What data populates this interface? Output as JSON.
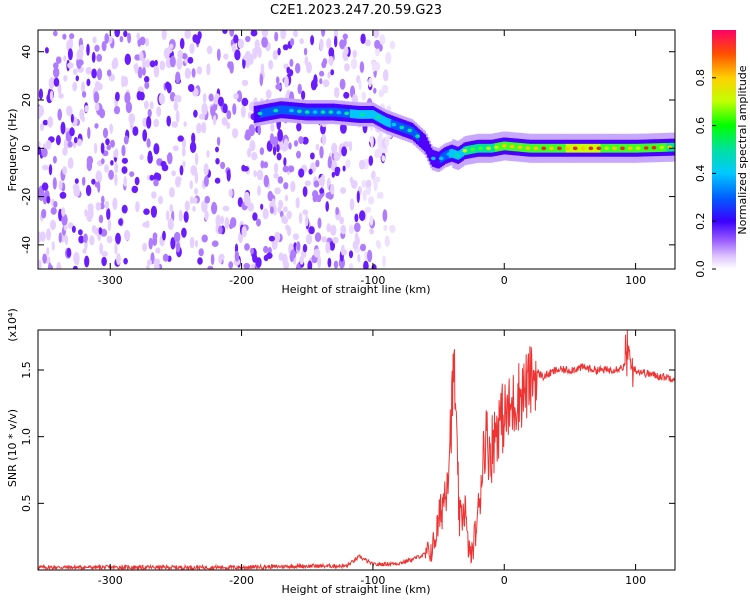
{
  "title": "C2E1.2023.247.20.59.G23",
  "colors": {
    "snr_line": "#ee3333",
    "spectrogram_low": "#7b2fff",
    "spectrogram_high": "#ee1166"
  },
  "chart_data": [
    {
      "type": "heatmap",
      "title": "",
      "xlabel": "Height of straight line (km)",
      "ylabel": "Frequency (Hz)",
      "xlim": [
        -355,
        130
      ],
      "ylim": [
        -50,
        49
      ],
      "x_ticks": [
        -300,
        -200,
        -100,
        0,
        100
      ],
      "x_tick_labels": [
        "-300",
        "-200",
        "-100",
        "0",
        "100"
      ],
      "y_ticks": [
        -40,
        -20,
        0,
        20,
        40
      ],
      "y_tick_labels": [
        "-40",
        "-20",
        "0",
        "20",
        "40"
      ],
      "colorbar": {
        "label": "Normalized spectral amplitude",
        "range": [
          0,
          1
        ],
        "ticks": [
          0.0,
          0.2,
          0.4,
          0.6,
          0.8
        ],
        "tick_labels": [
          "0.0",
          "0.2",
          "0.4",
          "0.6",
          "0.8"
        ],
        "colormap": "rainbow"
      },
      "noise_region": {
        "x_range": [
          -355,
          -85
        ],
        "y_range": [
          -50,
          49
        ],
        "amplitude": 0.15
      },
      "signal_track": {
        "x": [
          -190,
          -170,
          -150,
          -130,
          -110,
          -100,
          -90,
          -80,
          -70,
          -60,
          -55,
          -50,
          -45,
          -40,
          -35,
          -30,
          -20,
          -10,
          0,
          20,
          40,
          60,
          80,
          100,
          130
        ],
        "y": [
          14,
          16,
          15,
          15,
          14,
          14,
          11,
          9,
          7,
          2,
          -4,
          -5,
          -3,
          -2,
          -3,
          -1,
          0,
          0,
          1,
          0,
          0,
          0,
          0,
          0,
          0.5
        ],
        "amp": [
          0.35,
          0.45,
          0.4,
          0.45,
          0.5,
          0.5,
          0.5,
          0.45,
          0.4,
          0.35,
          0.35,
          0.35,
          0.45,
          0.5,
          0.55,
          0.6,
          0.65,
          0.7,
          0.8,
          0.85,
          0.85,
          0.9,
          0.85,
          0.85,
          0.7
        ]
      }
    },
    {
      "type": "line",
      "title": "",
      "xlabel": "Height of straight line (km)",
      "ylabel": "SNR (10 * v/v)",
      "y_scale_note": "(x10⁴)",
      "xlim": [
        -355,
        130
      ],
      "ylim": [
        0,
        1.8
      ],
      "grid": false,
      "x_ticks": [
        -300,
        -200,
        -100,
        0,
        100
      ],
      "x_tick_labels": [
        "-300",
        "-200",
        "-100",
        "0",
        "100"
      ],
      "y_ticks": [
        0.5,
        1.0,
        1.5
      ],
      "y_tick_labels": [
        "0.5",
        "1.0",
        "1.5"
      ],
      "series": [
        {
          "x": [
            -355,
            -300,
            -250,
            -200,
            -150,
            -120,
            -110,
            -100,
            -80,
            -70,
            -60,
            -55,
            -50,
            -45,
            -42,
            -40,
            -38,
            -36,
            -34,
            -30,
            -28,
            -25,
            -20,
            -15,
            -10,
            -5,
            0,
            5,
            10,
            15,
            20,
            25,
            30,
            40,
            50,
            60,
            70,
            80,
            90,
            95,
            100,
            110,
            120,
            130
          ],
          "y": [
            0.02,
            0.02,
            0.02,
            0.02,
            0.03,
            0.03,
            0.1,
            0.04,
            0.05,
            0.08,
            0.12,
            0.15,
            0.35,
            0.6,
            0.9,
            1.2,
            1.55,
            0.8,
            0.35,
            0.5,
            0.2,
            0.1,
            0.4,
            1.0,
            0.9,
            1.1,
            1.15,
            1.2,
            1.3,
            1.35,
            1.42,
            1.48,
            1.45,
            1.5,
            1.5,
            1.52,
            1.5,
            1.5,
            1.52,
            1.55,
            1.5,
            1.47,
            1.45,
            1.44
          ]
        }
      ]
    }
  ]
}
